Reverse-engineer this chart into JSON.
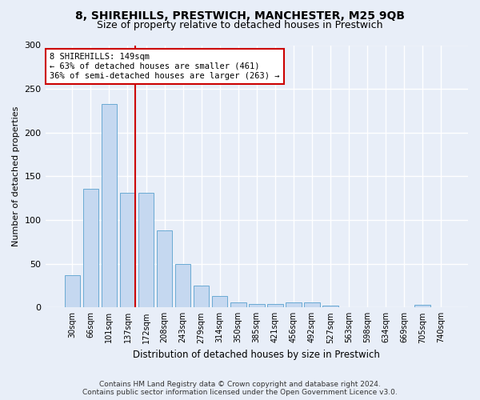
{
  "title": "8, SHIREHILLS, PRESTWICH, MANCHESTER, M25 9QB",
  "subtitle": "Size of property relative to detached houses in Prestwich",
  "xlabel": "Distribution of detached houses by size in Prestwich",
  "ylabel": "Number of detached properties",
  "footer_line1": "Contains HM Land Registry data © Crown copyright and database right 2024.",
  "footer_line2": "Contains public sector information licensed under the Open Government Licence v3.0.",
  "bar_color": "#c5d8f0",
  "bar_edge_color": "#6aaad4",
  "background_color": "#e8eef8",
  "grid_color": "#ffffff",
  "annotation_box_color": "#ffffff",
  "annotation_border_color": "#cc0000",
  "vline_color": "#cc0000",
  "categories": [
    "30sqm",
    "66sqm",
    "101sqm",
    "137sqm",
    "172sqm",
    "208sqm",
    "243sqm",
    "279sqm",
    "314sqm",
    "350sqm",
    "385sqm",
    "421sqm",
    "456sqm",
    "492sqm",
    "527sqm",
    "563sqm",
    "598sqm",
    "634sqm",
    "669sqm",
    "705sqm",
    "740sqm"
  ],
  "values": [
    37,
    136,
    233,
    131,
    131,
    88,
    50,
    25,
    13,
    6,
    4,
    4,
    6,
    6,
    2,
    0,
    0,
    0,
    0,
    3,
    0
  ],
  "property_label": "8 SHIREHILLS: 149sqm",
  "pct_smaller": 63,
  "n_smaller": 461,
  "pct_larger_semi": 36,
  "n_larger_semi": 263,
  "vline_x": 3.43,
  "ylim": [
    0,
    300
  ],
  "yticks": [
    0,
    50,
    100,
    150,
    200,
    250,
    300
  ],
  "title_fontsize": 10,
  "subtitle_fontsize": 9,
  "ylabel_fontsize": 8,
  "xlabel_fontsize": 8.5,
  "tick_fontsize": 7,
  "ann_fontsize": 7.5,
  "footer_fontsize": 6.5
}
